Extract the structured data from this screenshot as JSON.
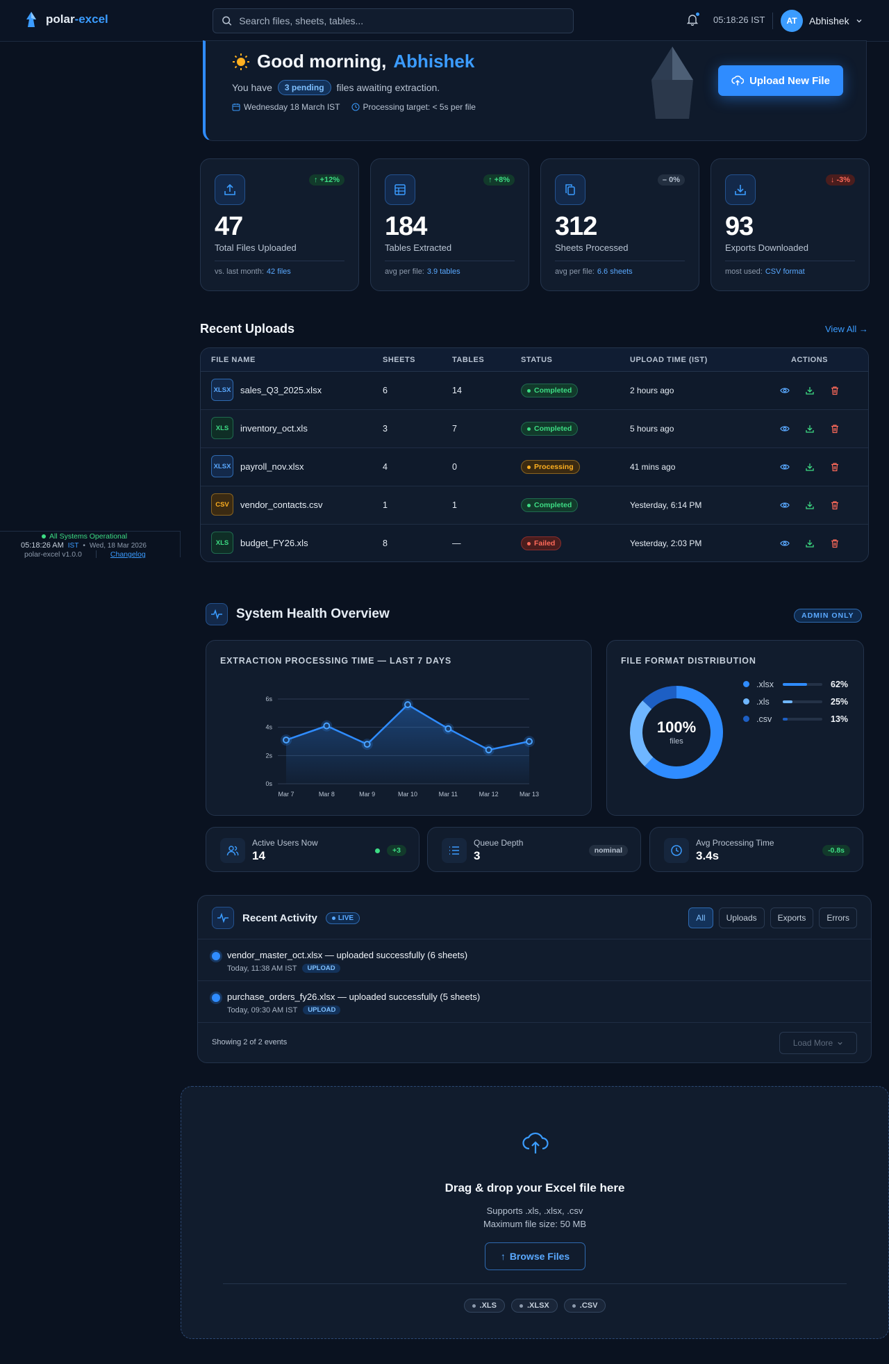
{
  "app": {
    "name_part1": "polar",
    "name_part2": "-excel"
  },
  "search": {
    "placeholder": "Search files, sheets, tables..."
  },
  "header": {
    "clock": "05:18:26 IST",
    "user_initials": "AT",
    "user_name": "Abhishek"
  },
  "sidebar_footer": {
    "status": "All Systems Operational",
    "time": "05:18:26 AM",
    "tz": "IST",
    "date": "Wed, 18 Mar 2026",
    "version": "polar-excel v1.0.0",
    "changelog": "Changelog"
  },
  "hero": {
    "greeting": "Good morning,",
    "name": "Abhishek",
    "sub_before": "You have",
    "pending": "3 pending",
    "sub_after": "files awaiting extraction.",
    "date": "Wednesday 18 March IST",
    "target": "Processing target: < 5s per file",
    "upload_label": "Upload New File"
  },
  "stats": [
    {
      "badge": "+12%",
      "trend": "up",
      "value": "47",
      "label": "Total Files Uploaded",
      "foot_label": "vs. last month:",
      "foot_value": "42 files"
    },
    {
      "badge": "+8%",
      "trend": "up",
      "value": "184",
      "label": "Tables Extracted",
      "foot_label": "avg per file:",
      "foot_value": "3.9 tables"
    },
    {
      "badge": "0%",
      "trend": "flat",
      "value": "312",
      "label": "Sheets Processed",
      "foot_label": "avg per file:",
      "foot_value": "6.6 sheets"
    },
    {
      "badge": "-3%",
      "trend": "down",
      "value": "93",
      "label": "Exports Downloaded",
      "foot_label": "most used:",
      "foot_value": "CSV format"
    }
  ],
  "uploads": {
    "title": "Recent Uploads",
    "view_all": "View All →",
    "columns": [
      "FILE NAME",
      "SHEETS",
      "TABLES",
      "STATUS",
      "UPLOAD TIME (IST)",
      "ACTIONS"
    ],
    "rows": [
      {
        "type": "XLSX",
        "name": "sales_Q3_2025.xlsx",
        "sheets": "6",
        "tables": "14",
        "status": "Completed",
        "time": "2 hours ago"
      },
      {
        "type": "XLS",
        "name": "inventory_oct.xls",
        "sheets": "3",
        "tables": "7",
        "status": "Completed",
        "time": "5 hours ago"
      },
      {
        "type": "XLSX",
        "name": "payroll_nov.xlsx",
        "sheets": "4",
        "tables": "0",
        "status": "Processing",
        "time": "41 mins ago"
      },
      {
        "type": "CSV",
        "name": "vendor_contacts.csv",
        "sheets": "1",
        "tables": "1",
        "status": "Completed",
        "time": "Yesterday, 6:14 PM"
      },
      {
        "type": "XLS",
        "name": "budget_FY26.xls",
        "sheets": "8",
        "tables": "—",
        "status": "Failed",
        "time": "Yesterday, 2:03 PM"
      }
    ]
  },
  "health": {
    "title": "System Health Overview",
    "badge": "ADMIN ONLY",
    "chart_title": "EXTRACTION PROCESSING TIME — LAST 7 DAYS",
    "donut_title": "FILE FORMAT DISTRIBUTION",
    "donut_center": "100%",
    "donut_sub": "files",
    "minis": [
      {
        "label": "Active Users Now",
        "value": "14",
        "chip": "+3"
      },
      {
        "label": "Queue Depth",
        "value": "3",
        "chip": "nominal"
      },
      {
        "label": "Avg Processing Time",
        "value": "3.4s",
        "chip": "-0.8s"
      }
    ]
  },
  "chart_data": [
    {
      "type": "line",
      "title": "EXTRACTION PROCESSING TIME — LAST 7 DAYS",
      "x": [
        "Mar 7",
        "Mar 8",
        "Mar 9",
        "Mar 10",
        "Mar 11",
        "Mar 12",
        "Mar 13"
      ],
      "values": [
        3.1,
        4.1,
        2.8,
        5.6,
        3.9,
        2.4,
        3.0
      ],
      "y_ticks": [
        "0s",
        "2s",
        "4s",
        "6s"
      ],
      "ylim": [
        0,
        6
      ],
      "grid": true
    },
    {
      "type": "pie",
      "title": "FILE FORMAT DISTRIBUTION",
      "categories": [
        ".xlsx",
        ".xls",
        ".csv"
      ],
      "values": [
        62,
        25,
        13
      ],
      "labels": [
        "62%",
        "25%",
        "13%"
      ],
      "colors": [
        "#2f8cff",
        "#6fb6ff",
        "#1d5fc4"
      ]
    }
  ],
  "activity": {
    "title": "Recent Activity",
    "live": "LIVE",
    "filters": [
      "All",
      "Uploads",
      "Exports",
      "Errors"
    ],
    "events": [
      {
        "message": "vendor_master_oct.xlsx — uploaded successfully (6 sheets)",
        "time": "Today, 11:38 AM IST",
        "tag": "UPLOAD"
      },
      {
        "message": "purchase_orders_fy26.xlsx — uploaded successfully (5 sheets)",
        "time": "Today, 09:30 AM IST",
        "tag": "UPLOAD"
      }
    ],
    "showing": "Showing 2 of 2 events",
    "load_more": "Load More"
  },
  "dropzone": {
    "title": "Drag & drop your Excel file here",
    "supports": "Supports .xls, .xlsx, .csv",
    "max_size": "Maximum file size: 50 MB",
    "browse": "Browse Files",
    "formats": [
      ".XLS",
      ".XLSX",
      ".CSV"
    ]
  }
}
